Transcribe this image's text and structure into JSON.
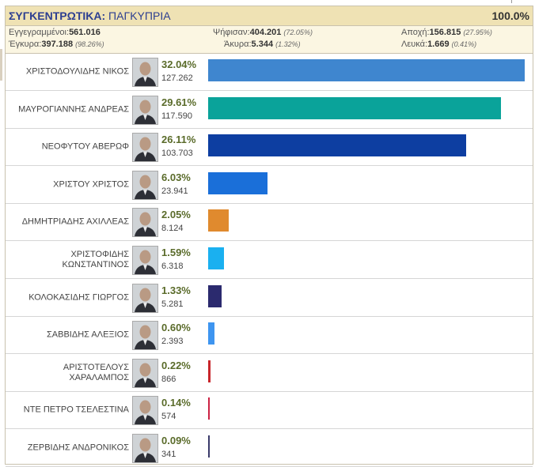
{
  "header": {
    "title_bold": "ΣΥΓΚΕΝΤΡΩΤΙΚΑ:",
    "title_rest": "ΠΑΓΚΥΠΡΙΑ",
    "counted": "100.0%"
  },
  "stats": {
    "registered_label": "Εγγεγραμμένοι:",
    "registered_value": "561.016",
    "voted_label": "Ψήφισαν:",
    "voted_value": "404.201",
    "voted_pct": "(72.05%)",
    "abstention_label": "Αποχή:",
    "abstention_value": "156.815",
    "abstention_pct": "(27.95%)",
    "valid_label": "Έγκυρα:",
    "valid_value": "397.188",
    "valid_pct": "(98.26%)",
    "invalid_label": "Άκυρα:",
    "invalid_value": "5.344",
    "invalid_pct": "(1.32%)",
    "blank_label": "Λευκά:",
    "blank_value": "1.669",
    "blank_pct": "(0.41%)"
  },
  "candidates": [
    {
      "name": "ΧΡΙΣΤΟΔΟΥΛΙΔΗΣ ΝΙΚΟΣ",
      "pct": "32.04%",
      "votes": "127.262",
      "share": 32.04,
      "color": "#3f86cf"
    },
    {
      "name": "ΜΑΥΡΟΓΙΑΝΝΗΣ ΑΝΔΡΕΑΣ",
      "pct": "29.61%",
      "votes": "117.590",
      "share": 29.61,
      "color": "#0aa39a"
    },
    {
      "name": "ΝΕΟΦΥΤΟΥ ΑΒΕΡΩΦ",
      "pct": "26.11%",
      "votes": "103.703",
      "share": 26.11,
      "color": "#0d3ea1"
    },
    {
      "name": "ΧΡΙΣΤΟΥ ΧΡΙΣΤΟΣ",
      "pct": "6.03%",
      "votes": "23.941",
      "share": 6.03,
      "color": "#1a6fd9"
    },
    {
      "name": "ΔΗΜΗΤΡΙΑΔΗΣ ΑΧΙΛΛΕΑΣ",
      "pct": "2.05%",
      "votes": "8.124",
      "share": 2.05,
      "color": "#e08a2e"
    },
    {
      "name": "ΧΡΙΣΤΟΦΙΔΗΣ ΚΩΝΣΤΑΝΤΙΝΟΣ",
      "pct": "1.59%",
      "votes": "6.318",
      "share": 1.59,
      "color": "#1ab0f0"
    },
    {
      "name": "ΚΟΛΟΚΑΣΙΔΗΣ ΓΙΩΡΓΟΣ",
      "pct": "1.33%",
      "votes": "5.281",
      "share": 1.33,
      "color": "#2b2a6e"
    },
    {
      "name": "ΣΑΒΒΙΔΗΣ ΑΛΕΞΙΟΣ",
      "pct": "0.60%",
      "votes": "2.393",
      "share": 0.6,
      "color": "#3e95f0"
    },
    {
      "name": "ΑΡΙΣΤΟΤΕΛΟΥΣ ΧΑΡΑΛΑΜΠΟΣ",
      "pct": "0.22%",
      "votes": "866",
      "share": 0.22,
      "color": "#c8262b"
    },
    {
      "name": "ΝΤΕ ΠΕΤΡΟ ΤΣΕΛΕΣΤΙΝΑ",
      "pct": "0.14%",
      "votes": "574",
      "share": 0.14,
      "color": "#cc2244"
    },
    {
      "name": "ΖΕΡΒΙΔΗΣ ΑΝΔΡΟΝΙΚΟΣ",
      "pct": "0.09%",
      "votes": "341",
      "share": 0.09,
      "color": "#3a3a6a"
    }
  ]
}
